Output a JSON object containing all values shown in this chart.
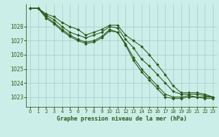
{
  "title": "Graphe pression niveau de la mer (hPa)",
  "bg_color": "#cceee8",
  "grid_color": "#99cccc",
  "line_color": "#2d5a1b",
  "xlim": [
    -0.5,
    23.5
  ],
  "ylim": [
    1022.3,
    1029.6
  ],
  "yticks": [
    1023,
    1024,
    1025,
    1026,
    1027,
    1028
  ],
  "xticks": [
    0,
    1,
    2,
    3,
    4,
    5,
    6,
    7,
    8,
    9,
    10,
    11,
    12,
    13,
    14,
    15,
    16,
    17,
    18,
    19,
    20,
    21,
    22,
    23
  ],
  "series": [
    [
      1029.3,
      1029.3,
      1028.9,
      1028.7,
      1028.3,
      1028.0,
      1027.8,
      1027.4,
      1027.6,
      1027.8,
      1028.1,
      1028.1,
      1027.4,
      1027.0,
      1026.6,
      1026.0,
      1025.3,
      1024.6,
      1023.8,
      1023.3,
      1023.3,
      1023.3,
      1023.2,
      1023.0
    ],
    [
      1029.3,
      1029.3,
      1028.8,
      1028.5,
      1028.0,
      1027.6,
      1027.4,
      1027.2,
      1027.4,
      1027.6,
      1028.0,
      1027.9,
      1027.1,
      1026.5,
      1025.7,
      1025.2,
      1024.6,
      1024.0,
      1023.4,
      1023.2,
      1023.2,
      1023.2,
      1023.1,
      1023.0
    ],
    [
      1029.3,
      1029.3,
      1028.7,
      1028.3,
      1027.8,
      1027.4,
      1027.1,
      1026.9,
      1027.0,
      1027.3,
      1027.8,
      1027.6,
      1026.8,
      1025.8,
      1025.0,
      1024.4,
      1023.8,
      1023.2,
      1023.0,
      1023.0,
      1023.1,
      1023.0,
      1023.0,
      1023.0
    ],
    [
      1029.3,
      1029.3,
      1028.6,
      1028.2,
      1027.7,
      1027.3,
      1027.0,
      1026.8,
      1026.9,
      1027.2,
      1027.7,
      1027.6,
      1026.7,
      1025.6,
      1024.8,
      1024.2,
      1023.6,
      1023.0,
      1022.9,
      1022.9,
      1023.0,
      1023.0,
      1022.9,
      1022.9
    ]
  ]
}
